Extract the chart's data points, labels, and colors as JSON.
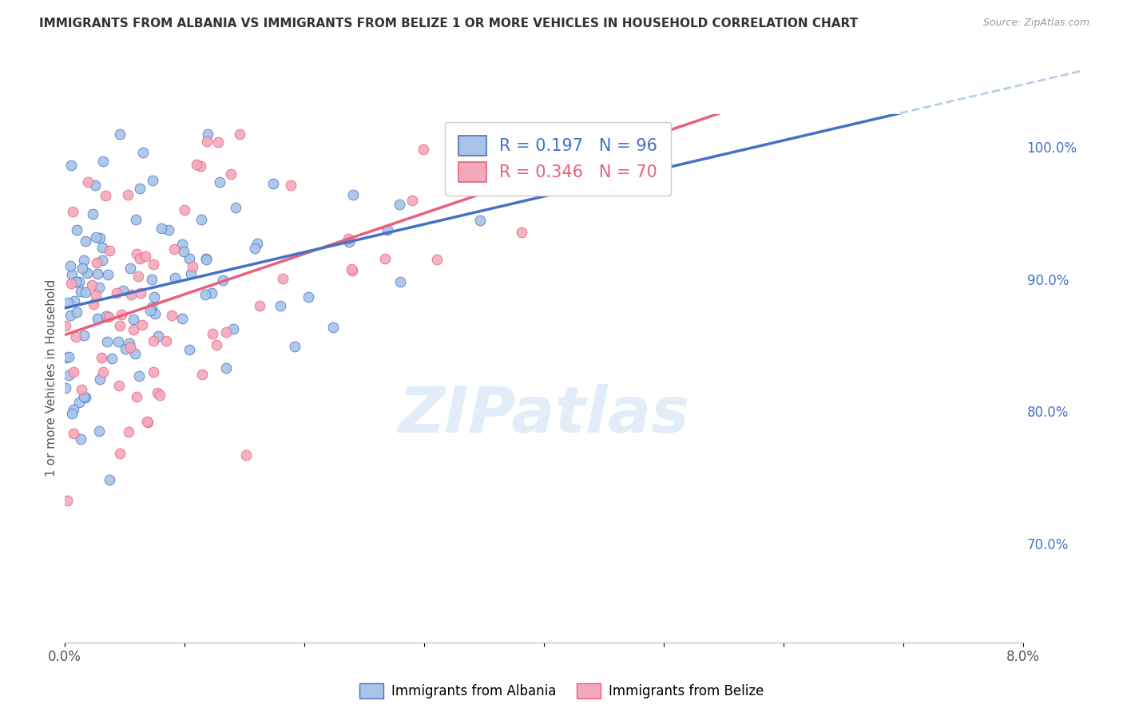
{
  "title": "IMMIGRANTS FROM ALBANIA VS IMMIGRANTS FROM BELIZE 1 OR MORE VEHICLES IN HOUSEHOLD CORRELATION CHART",
  "source": "Source: ZipAtlas.com",
  "ylabel": "1 or more Vehicles in Household",
  "ytick_vals": [
    0.7,
    0.8,
    0.9,
    1.0
  ],
  "xmin": 0.0,
  "xmax": 0.08,
  "ymin": 0.625,
  "ymax": 1.025,
  "legend_albania": "Immigrants from Albania",
  "legend_belize": "Immigrants from Belize",
  "R_albania": "0.197",
  "N_albania": "96",
  "R_belize": "0.346",
  "N_belize": "70",
  "color_albania": "#a8c4e8",
  "color_belize": "#f4a8bc",
  "line_albania": "#4472c4",
  "line_belize": "#e8607a",
  "line_dashed": "#b8cfe8",
  "watermark_color": "#ddeaf8",
  "background": "#ffffff",
  "title_color": "#333333",
  "source_color": "#999999",
  "ylabel_color": "#555555",
  "ytick_color": "#4472c4",
  "grid_color": "#dddddd",
  "xtick_color": "#555555"
}
